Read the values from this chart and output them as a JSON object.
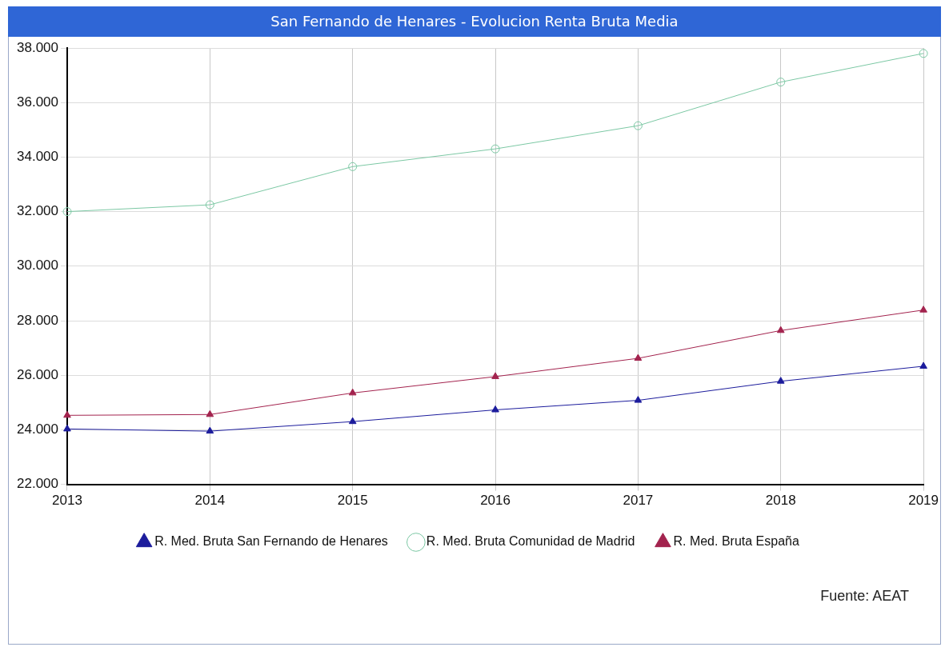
{
  "chart_data": {
    "type": "line",
    "title": "San Fernando de Henares - Evolucion Renta Bruta Media",
    "categories": [
      "2013",
      "2014",
      "2015",
      "2016",
      "2017",
      "2018",
      "2019"
    ],
    "series": [
      {
        "name": "R. Med. Bruta San Fernando de Henares",
        "color": "#1c1c9c",
        "marker": "triangle",
        "values": [
          24030,
          23950,
          24300,
          24730,
          25080,
          25780,
          26330
        ]
      },
      {
        "name": "R. Med. Bruta Comunidad de Madrid",
        "color": "#7cc8a4",
        "marker": "circle",
        "values": [
          32000,
          32250,
          33650,
          34300,
          35150,
          36750,
          37800
        ]
      },
      {
        "name": "R. Med. Bruta España",
        "color": "#a3234e",
        "marker": "triangle",
        "values": [
          24530,
          24560,
          25350,
          25950,
          26620,
          27640,
          28390
        ]
      }
    ],
    "ylim": [
      22000,
      38000
    ],
    "yticks": [
      {
        "value": 22000,
        "label": "22.000"
      },
      {
        "value": 24000,
        "label": "24.000"
      },
      {
        "value": 26000,
        "label": "26.000"
      },
      {
        "value": 28000,
        "label": "28.000"
      },
      {
        "value": 30000,
        "label": "30.000"
      },
      {
        "value": 32000,
        "label": "32.000"
      },
      {
        "value": 34000,
        "label": "34.000"
      },
      {
        "value": 36000,
        "label": "36.000"
      },
      {
        "value": 38000,
        "label": "38.000"
      }
    ],
    "grid": true,
    "legend": "bottom",
    "line_style": "solid",
    "annotations": [
      "Fuente: AEAT"
    ]
  }
}
